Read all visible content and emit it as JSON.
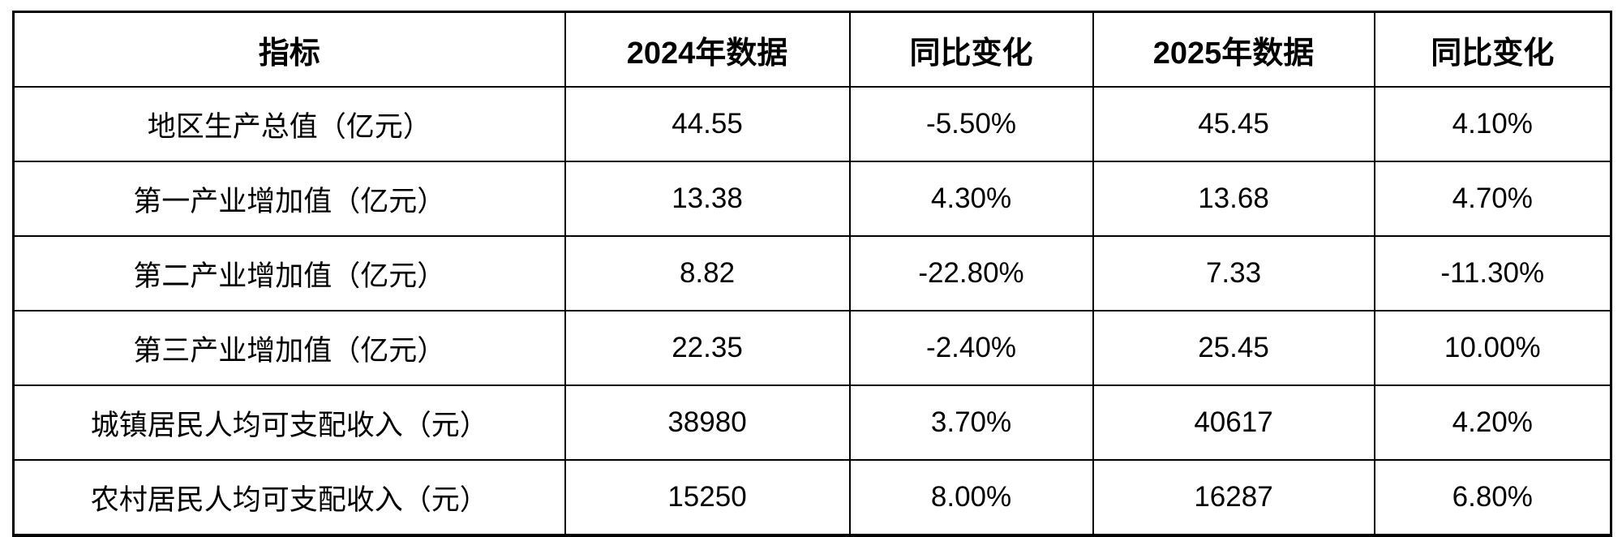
{
  "page": {
    "background_color": "#ffffff",
    "border_color": "#000000",
    "text_color": "#000000"
  },
  "table": {
    "headers": [
      "指标",
      "2024年数据",
      "同比变化",
      "2025年数据",
      "同比变化"
    ],
    "rows": [
      [
        "地区生产总值（亿元）",
        "44.55",
        "-5.50%",
        "45.45",
        "4.10%"
      ],
      [
        "第一产业增加值（亿元）",
        "13.38",
        "4.30%",
        "13.68",
        "4.70%"
      ],
      [
        "第二产业增加值（亿元）",
        "8.82",
        "-22.80%",
        "7.33",
        "-11.30%"
      ],
      [
        "第三产业增加值（亿元）",
        "22.35",
        "-2.40%",
        "25.45",
        "10.00%"
      ],
      [
        "城镇居民人均可支配收入（元）",
        "38980",
        "3.70%",
        "40617",
        "4.20%"
      ],
      [
        "农村居民人均可支配收入（元）",
        "15250",
        "8.00%",
        "16287",
        "6.80%"
      ]
    ]
  },
  "chart_data": {
    "type": "table",
    "title": "",
    "columns": [
      "指标",
      "2024年数据",
      "同比变化",
      "2025年数据",
      "同比变化"
    ],
    "rows": [
      {
        "指标": "地区生产总值（亿元）",
        "2024年数据": 44.55,
        "同比变化_2024": "-5.50%",
        "2025年数据": 45.45,
        "同比变化_2025": "4.10%"
      },
      {
        "指标": "第一产业增加值（亿元）",
        "2024年数据": 13.38,
        "同比变化_2024": "4.30%",
        "2025年数据": 13.68,
        "同比变化_2025": "4.70%"
      },
      {
        "指标": "第二产业增加值（亿元）",
        "2024年数据": 8.82,
        "同比变化_2024": "-22.80%",
        "2025年数据": 7.33,
        "同比变化_2025": "-11.30%"
      },
      {
        "指标": "第三产业增加值（亿元）",
        "2024年数据": 22.35,
        "同比变化_2024": "-2.40%",
        "2025年数据": 25.45,
        "同比变化_2025": "10.00%"
      },
      {
        "指标": "城镇居民人均可支配收入（元）",
        "2024年数据": 38980,
        "同比变化_2024": "3.70%",
        "2025年数据": 40617,
        "同比变化_2025": "4.20%"
      },
      {
        "指标": "农村居民人均可支配收入（元）",
        "2024年数据": 15250,
        "同比变化_2024": "8.00%",
        "2025年数据": 16287,
        "同比变化_2025": "6.80%"
      }
    ]
  }
}
